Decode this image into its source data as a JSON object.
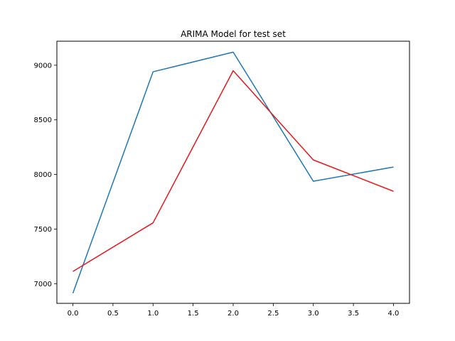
{
  "chart_data": {
    "type": "line",
    "title": "ARIMA Model for test set",
    "xlabel": "",
    "ylabel": "",
    "x": [
      0,
      1,
      2,
      3,
      4
    ],
    "series": [
      {
        "color": "#1f77b4",
        "values": [
          6913,
          8940,
          9120,
          7938,
          8068
        ]
      },
      {
        "color": "#e6191e",
        "values": [
          7112,
          7557,
          8950,
          8133,
          7846
        ]
      }
    ],
    "xlim": [
      -0.2,
      4.2
    ],
    "ylim": [
      6820,
      9220
    ],
    "x_ticks": [
      "0.0",
      "0.5",
      "1.0",
      "1.5",
      "2.0",
      "2.5",
      "3.0",
      "3.5",
      "4.0"
    ],
    "y_ticks": [
      "7000",
      "7500",
      "8000",
      "8500",
      "9000"
    ],
    "grid": false,
    "legend": "none"
  }
}
